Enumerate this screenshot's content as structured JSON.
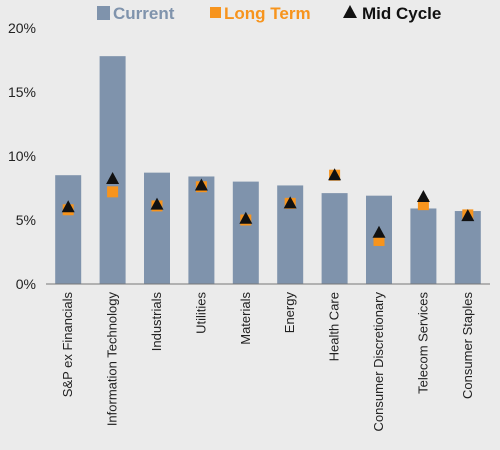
{
  "chart_data": {
    "type": "bar",
    "categories": [
      "S&P ex Financials",
      "Information Technology",
      "Industrials",
      "Utilities",
      "Materials",
      "Energy",
      "Health Care",
      "Consumer Discretionary",
      "Telecom Services",
      "Consumer Staples"
    ],
    "series": [
      {
        "name": "Current",
        "mark": "bar",
        "color": "#7f93ac",
        "values": [
          8.5,
          17.8,
          8.7,
          8.4,
          8.0,
          7.7,
          7.1,
          6.9,
          5.9,
          5.7
        ]
      },
      {
        "name": "Long Term",
        "mark": "square",
        "color": "#f7941d",
        "values": [
          5.8,
          7.2,
          6.1,
          7.6,
          5.0,
          6.3,
          8.5,
          3.4,
          6.2,
          5.4
        ]
      },
      {
        "name": "Mid Cycle",
        "mark": "triangle",
        "color": "#111111",
        "values": [
          6.0,
          8.2,
          6.2,
          7.7,
          5.1,
          6.3,
          8.5,
          4.0,
          6.8,
          5.3
        ]
      }
    ],
    "y_ticks": [
      "0%",
      "5%",
      "10%",
      "15%",
      "20%"
    ],
    "ylim": [
      0,
      20
    ],
    "title": "",
    "xlabel": "",
    "ylabel": "",
    "legend_position": "top-center",
    "grid": false
  }
}
